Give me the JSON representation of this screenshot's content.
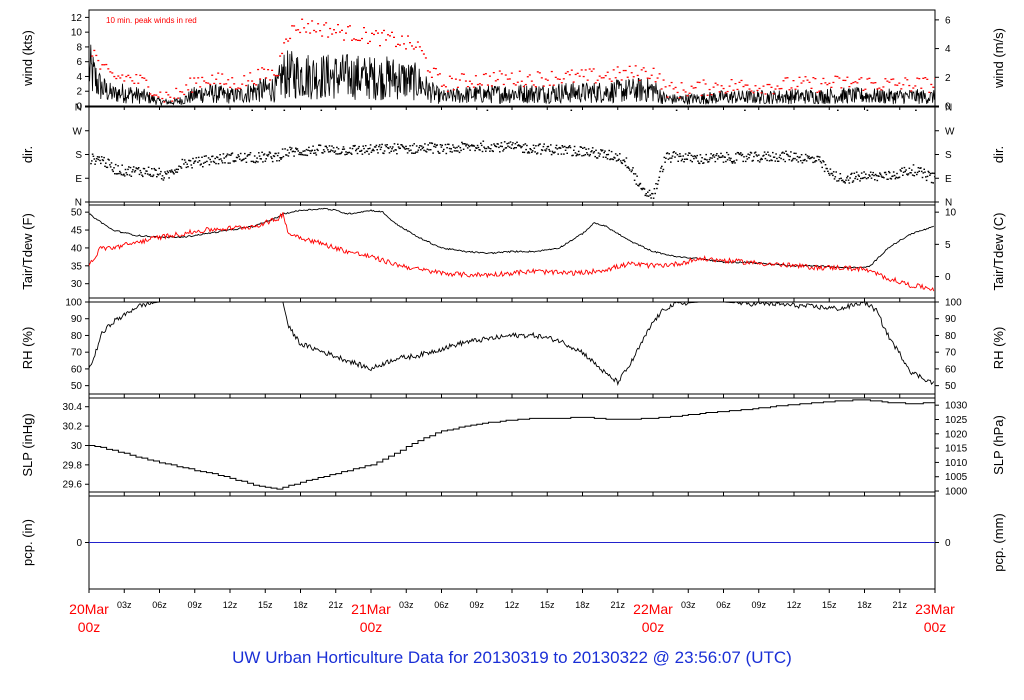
{
  "footer_title": "UW Urban Horticulture Data for 20130319  to  20130322 @ 23:56:07  (UTC)",
  "colors": {
    "primary": "#000000",
    "peak_and_dewpoint": "#ff0000",
    "date_label": "#ff0000",
    "precip_line": "#2222cc",
    "footer": "#1a2fd6"
  },
  "x_axis": {
    "unit": "hours since 20Mar 00z",
    "range": [
      0,
      72
    ],
    "hour_ticks": [
      {
        "h": 3,
        "label": "03z"
      },
      {
        "h": 6,
        "label": "06z"
      },
      {
        "h": 9,
        "label": "09z"
      },
      {
        "h": 12,
        "label": "12z"
      },
      {
        "h": 15,
        "label": "15z"
      },
      {
        "h": 18,
        "label": "18z"
      },
      {
        "h": 21,
        "label": "21z"
      },
      {
        "h": 27,
        "label": "03z"
      },
      {
        "h": 30,
        "label": "06z"
      },
      {
        "h": 33,
        "label": "09z"
      },
      {
        "h": 36,
        "label": "12z"
      },
      {
        "h": 39,
        "label": "15z"
      },
      {
        "h": 42,
        "label": "18z"
      },
      {
        "h": 45,
        "label": "21z"
      },
      {
        "h": 51,
        "label": "03z"
      },
      {
        "h": 54,
        "label": "06z"
      },
      {
        "h": 57,
        "label": "09z"
      },
      {
        "h": 60,
        "label": "12z"
      },
      {
        "h": 63,
        "label": "15z"
      },
      {
        "h": 66,
        "label": "18z"
      },
      {
        "h": 69,
        "label": "21z"
      }
    ],
    "day_ticks": [
      {
        "h": 0,
        "date": "20Mar",
        "time": "00z"
      },
      {
        "h": 24,
        "date": "21Mar",
        "time": "00z"
      },
      {
        "h": 48,
        "date": "22Mar",
        "time": "00z"
      },
      {
        "h": 72,
        "date": "23Mar",
        "time": "00z"
      }
    ]
  },
  "chart_data": [
    {
      "type": "line",
      "panel": "wind",
      "annotation": "10 min. peak winds in red",
      "ylabel_left": "wind (kts)",
      "ylabel_right": "wind (m/s)",
      "ylim": [
        0,
        13
      ],
      "yticks_left": [
        0,
        2,
        4,
        6,
        8,
        10,
        12
      ],
      "yticks_right": [
        0,
        2,
        4,
        6
      ],
      "series": [
        {
          "role": "sustained",
          "x": [
            0,
            1,
            2,
            3,
            4,
            5,
            6,
            7,
            8,
            9,
            10,
            11,
            12,
            13,
            14,
            15,
            16,
            16.5,
            18,
            20,
            22,
            24,
            26,
            28,
            29,
            30,
            32,
            34,
            36,
            38,
            40,
            42,
            44,
            46,
            48,
            49,
            50,
            52,
            54,
            56,
            58,
            60,
            62,
            64,
            66,
            68,
            70,
            72
          ],
          "y": [
            5,
            2.5,
            1.6,
            1.8,
            1.5,
            1.2,
            0.6,
            0.5,
            0.8,
            1.5,
            1.8,
            1.6,
            1.4,
            1.5,
            2,
            2.2,
            2.4,
            4.2,
            4.2,
            4.0,
            4.0,
            3.8,
            3.8,
            3.2,
            2.0,
            1.2,
            1.5,
            1.6,
            1.7,
            1.7,
            1.8,
            1.8,
            1.9,
            2.1,
            2.2,
            1.0,
            0.9,
            1.0,
            1.2,
            1.2,
            1.2,
            1.3,
            1.3,
            1.4,
            1.4,
            1.3,
            1.3,
            1.2
          ]
        },
        {
          "role": "peak",
          "x": [
            0,
            1,
            2,
            3,
            4,
            5,
            6,
            7,
            8,
            9,
            10,
            11,
            12,
            13,
            14,
            15,
            16,
            16.5,
            18,
            20,
            22,
            24,
            26,
            28,
            29,
            30,
            32,
            34,
            36,
            38,
            40,
            42,
            44,
            46,
            48,
            49,
            50,
            52,
            54,
            56,
            58,
            60,
            62,
            64,
            66,
            68,
            70,
            72
          ],
          "y": [
            8.5,
            5,
            4,
            4,
            3.5,
            3,
            1.5,
            1.3,
            2,
            3.5,
            3.8,
            3.5,
            3.2,
            3.3,
            4,
            4.3,
            4.5,
            9.5,
            11,
            10.5,
            10,
            9.5,
            9,
            8,
            5,
            3,
            3.5,
            3.8,
            3.8,
            3.8,
            4,
            4,
            4.2,
            4.5,
            4.7,
            2.4,
            2.2,
            2.5,
            2.8,
            2.8,
            2.8,
            3,
            3,
            3.2,
            3.2,
            3,
            3,
            3
          ]
        }
      ]
    },
    {
      "type": "scatter",
      "panel": "direction",
      "ylabel_left": "dir.",
      "ylabel_right": "dir.",
      "ylim": [
        0,
        360
      ],
      "yticks_left": [
        {
          "value": 0,
          "label": "N"
        },
        {
          "value": 90,
          "label": "E"
        },
        {
          "value": 180,
          "label": "S"
        },
        {
          "value": 270,
          "label": "W"
        },
        {
          "value": 360,
          "label": "N"
        }
      ],
      "yticks_right": [
        {
          "value": 0,
          "label": "N"
        },
        {
          "value": 90,
          "label": "E"
        },
        {
          "value": 180,
          "label": "S"
        },
        {
          "value": 270,
          "label": "W"
        },
        {
          "value": 360,
          "label": "N"
        }
      ],
      "x": [
        0,
        1,
        2,
        3,
        4,
        5,
        6,
        6.5,
        7,
        8,
        9,
        10,
        12,
        14,
        16,
        16.5,
        18,
        20,
        22,
        24,
        26,
        28,
        29,
        30,
        32,
        34,
        36,
        38,
        40,
        42,
        44,
        45,
        46,
        46.5,
        47,
        48,
        49,
        50,
        51,
        52,
        54,
        56,
        58,
        60,
        62,
        63,
        64,
        66,
        68,
        70,
        72
      ],
      "y": [
        165,
        165,
        130,
        120,
        120,
        118,
        110,
        95,
        120,
        150,
        150,
        160,
        170,
        170,
        175,
        190,
        195,
        200,
        200,
        200,
        205,
        205,
        210,
        200,
        210,
        215,
        210,
        205,
        200,
        195,
        180,
        175,
        140,
        90,
        40,
        30,
        170,
        175,
        170,
        165,
        170,
        170,
        175,
        175,
        160,
        110,
        90,
        100,
        100,
        125,
        90
      ]
    },
    {
      "type": "line",
      "panel": "temperature",
      "ylabel_left": "Tair/Tdew (F)",
      "ylabel_right": "Tair/Tdew (C)",
      "ylim": [
        26,
        52
      ],
      "yticks_left": [
        30,
        35,
        40,
        45,
        50
      ],
      "yticks_right": [
        0,
        5,
        10
      ],
      "series": [
        {
          "role": "air",
          "x": [
            0,
            2,
            4,
            6,
            8,
            10,
            12,
            14,
            16,
            16.5,
            18,
            20,
            21,
            22,
            24,
            25,
            26,
            28,
            30,
            32,
            34,
            36,
            38,
            40,
            42,
            43,
            44,
            46,
            48,
            50,
            52,
            54,
            56,
            58,
            60,
            62,
            64,
            66,
            66.5,
            68,
            70,
            72
          ],
          "y": [
            49.5,
            45,
            43.5,
            43,
            43,
            44,
            45,
            46,
            48.5,
            49.5,
            50.5,
            51,
            50.5,
            49.5,
            50.5,
            50,
            47,
            43,
            40,
            39,
            38.5,
            39,
            39,
            40,
            44,
            47,
            46,
            42,
            39,
            37.5,
            37,
            36,
            36,
            35.5,
            35,
            35,
            34.5,
            34.5,
            35,
            40,
            44,
            46
          ]
        },
        {
          "role": "dewpoint",
          "x": [
            0,
            1,
            2,
            4,
            6,
            8,
            10,
            12,
            14,
            16,
            16.5,
            17,
            18,
            20,
            22,
            24,
            26,
            28,
            30,
            32,
            34,
            36,
            38,
            40,
            42,
            44,
            46,
            48,
            50,
            52,
            54,
            56,
            58,
            60,
            62,
            64,
            66,
            68,
            70,
            72
          ],
          "y": [
            35,
            40,
            40,
            41.5,
            43,
            44,
            45,
            45.5,
            46,
            48,
            49.5,
            44,
            43,
            41,
            39,
            37.5,
            35.5,
            34,
            33,
            32.5,
            32.5,
            33,
            33.5,
            33,
            33,
            34,
            35.5,
            35,
            35.5,
            37,
            36.5,
            36,
            35.5,
            35,
            34.5,
            34.5,
            34,
            31.5,
            29.5,
            28.5
          ]
        }
      ]
    },
    {
      "type": "line",
      "panel": "relative-humidity",
      "ylabel_left": "RH (%)",
      "ylabel_right": "RH (%)",
      "ylim": [
        45,
        100
      ],
      "yticks_left": [
        50,
        60,
        70,
        80,
        90,
        100
      ],
      "yticks_right": [
        50,
        60,
        70,
        80,
        90,
        100
      ],
      "x": [
        0,
        0.5,
        1,
        2,
        3,
        4,
        5,
        6,
        8,
        10,
        12,
        14,
        16,
        16.5,
        17,
        18,
        20,
        22,
        24,
        26,
        28,
        30,
        32,
        34,
        36,
        38,
        40,
        42,
        44,
        45,
        46,
        47,
        48,
        49,
        50,
        52,
        54,
        56,
        58,
        60,
        62,
        64,
        66,
        67,
        68,
        70,
        72
      ],
      "y": [
        60,
        68,
        80,
        88,
        92,
        97,
        99,
        100,
        100,
        100,
        100,
        100,
        100,
        100,
        85,
        75,
        70,
        65,
        60,
        66,
        68,
        72,
        76,
        78,
        80,
        80,
        77,
        70,
        57,
        52,
        62,
        75,
        88,
        96,
        99,
        100,
        100,
        99,
        99,
        98,
        97,
        96,
        100,
        95,
        80,
        58,
        51
      ]
    },
    {
      "type": "line",
      "panel": "sea-level-pressure",
      "ylabel_left": "SLP (inHg)",
      "ylabel_right": "SLP (hPa)",
      "ylim": [
        29.52,
        30.49
      ],
      "yticks_left": [
        29.6,
        29.8,
        30.0,
        30.2,
        30.4
      ],
      "yticks_right": [
        1000,
        1005,
        1010,
        1015,
        1020,
        1025,
        1030
      ],
      "x": [
        0,
        2,
        4,
        6,
        8,
        10,
        12,
        14,
        16,
        18,
        20,
        22,
        24,
        26,
        28,
        30,
        32,
        34,
        36,
        38,
        40,
        42,
        44,
        46,
        48,
        50,
        52,
        54,
        56,
        58,
        60,
        62,
        64,
        66,
        68,
        70,
        72
      ],
      "y": [
        30.0,
        29.95,
        29.88,
        29.82,
        29.77,
        29.72,
        29.66,
        29.59,
        29.55,
        29.62,
        29.68,
        29.74,
        29.8,
        29.92,
        30.05,
        30.15,
        30.2,
        30.24,
        30.26,
        30.28,
        30.28,
        30.29,
        30.27,
        30.27,
        30.28,
        30.3,
        30.33,
        30.35,
        30.37,
        30.4,
        30.42,
        30.44,
        30.46,
        30.47,
        30.44,
        30.43,
        30.44
      ]
    },
    {
      "type": "line",
      "panel": "precipitation",
      "ylabel_left": "pcp. (in)",
      "ylabel_right": "pcp. (mm)",
      "ylim": [
        -1,
        1
      ],
      "yticks_left": [
        0
      ],
      "yticks_right": [
        0
      ],
      "x": [
        0,
        72
      ],
      "y": [
        0,
        0
      ]
    }
  ]
}
